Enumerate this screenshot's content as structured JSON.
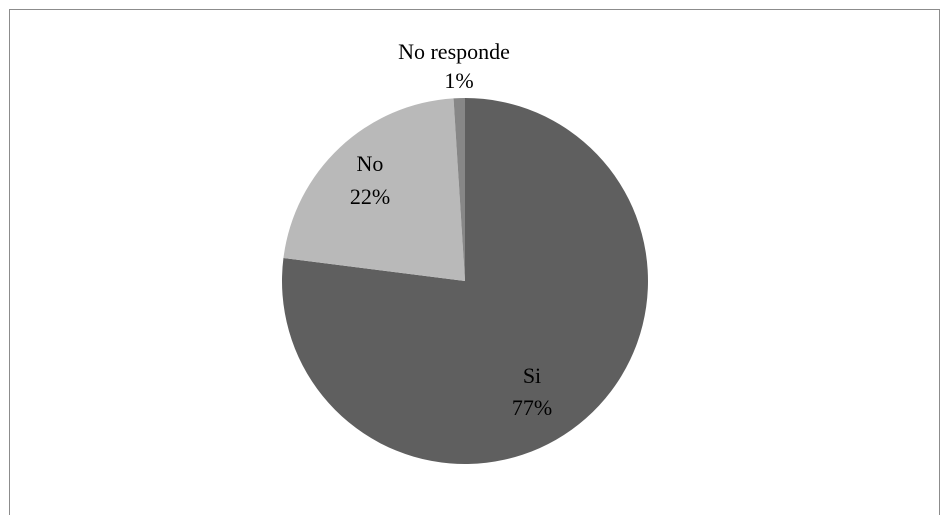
{
  "chart_data": {
    "type": "pie",
    "title": "",
    "legend": "none",
    "start_angle_deg": 0,
    "direction": "clockwise",
    "slices": [
      {
        "label": "Si",
        "value": 77,
        "pct_label": "77%",
        "color": "#5f5f5f"
      },
      {
        "label": "No",
        "value": 22,
        "pct_label": "22%",
        "color": "#b9b9b9"
      },
      {
        "label": "No responde",
        "value": 1,
        "pct_label": "1%",
        "color": "#878787"
      }
    ]
  }
}
